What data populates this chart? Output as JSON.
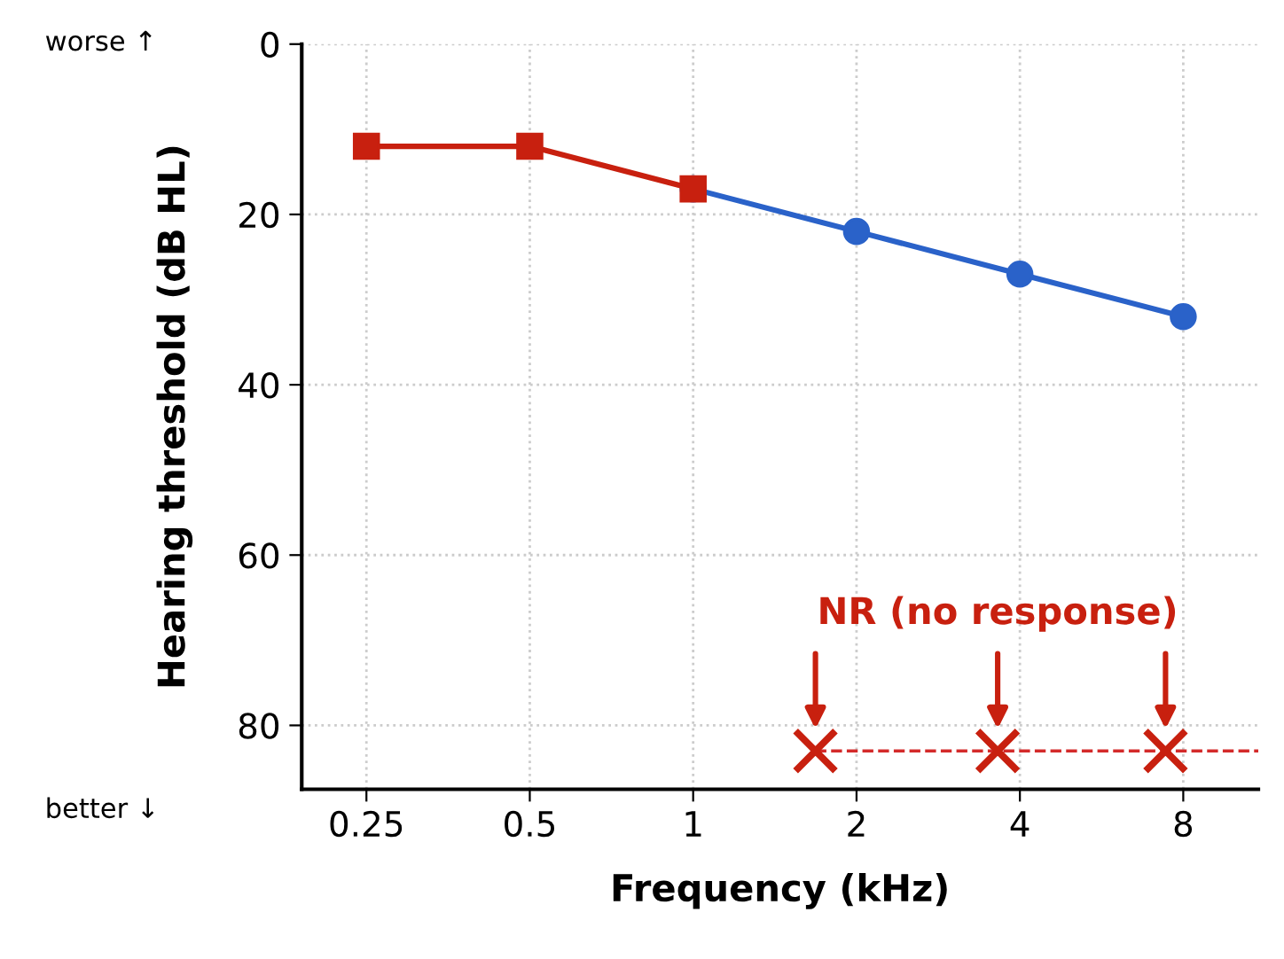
{
  "chart_data": {
    "type": "line",
    "xlabel": "Frequency (kHz)",
    "ylabel": "Hearing threshold (dB HL)",
    "log": "x",
    "xlim": [
      0.19,
      11
    ],
    "xticks": [
      0.25,
      0.5,
      1,
      2,
      4,
      8
    ],
    "ylim": [
      87.5,
      0
    ],
    "yticks": [
      0,
      20,
      40,
      60,
      80
    ],
    "grid": true,
    "series": [
      {
        "color": "#2a62c9",
        "x": [
          1,
          2,
          4,
          8
        ],
        "values": [
          17,
          22,
          27,
          32
        ],
        "marker": "circle",
        "line_style": "solid"
      },
      {
        "color": "#c8200f",
        "x": [
          0.25,
          0.5,
          1
        ],
        "values": [
          12,
          12,
          17
        ],
        "marker": "square",
        "line_style": "solid"
      },
      {
        "color": "#d42a2a",
        "x": [
          1.68,
          11
        ],
        "values": [
          83,
          83
        ],
        "line_style": "dashed"
      },
      {
        "type": "scatter",
        "color": "#c8200f",
        "x": [
          1.68,
          3.64,
          7.42
        ],
        "values": [
          83,
          83,
          83
        ],
        "marker": "cross"
      }
    ],
    "annotations": [
      "NR (no response)",
      "worse ↑",
      "better ↓"
    ]
  }
}
